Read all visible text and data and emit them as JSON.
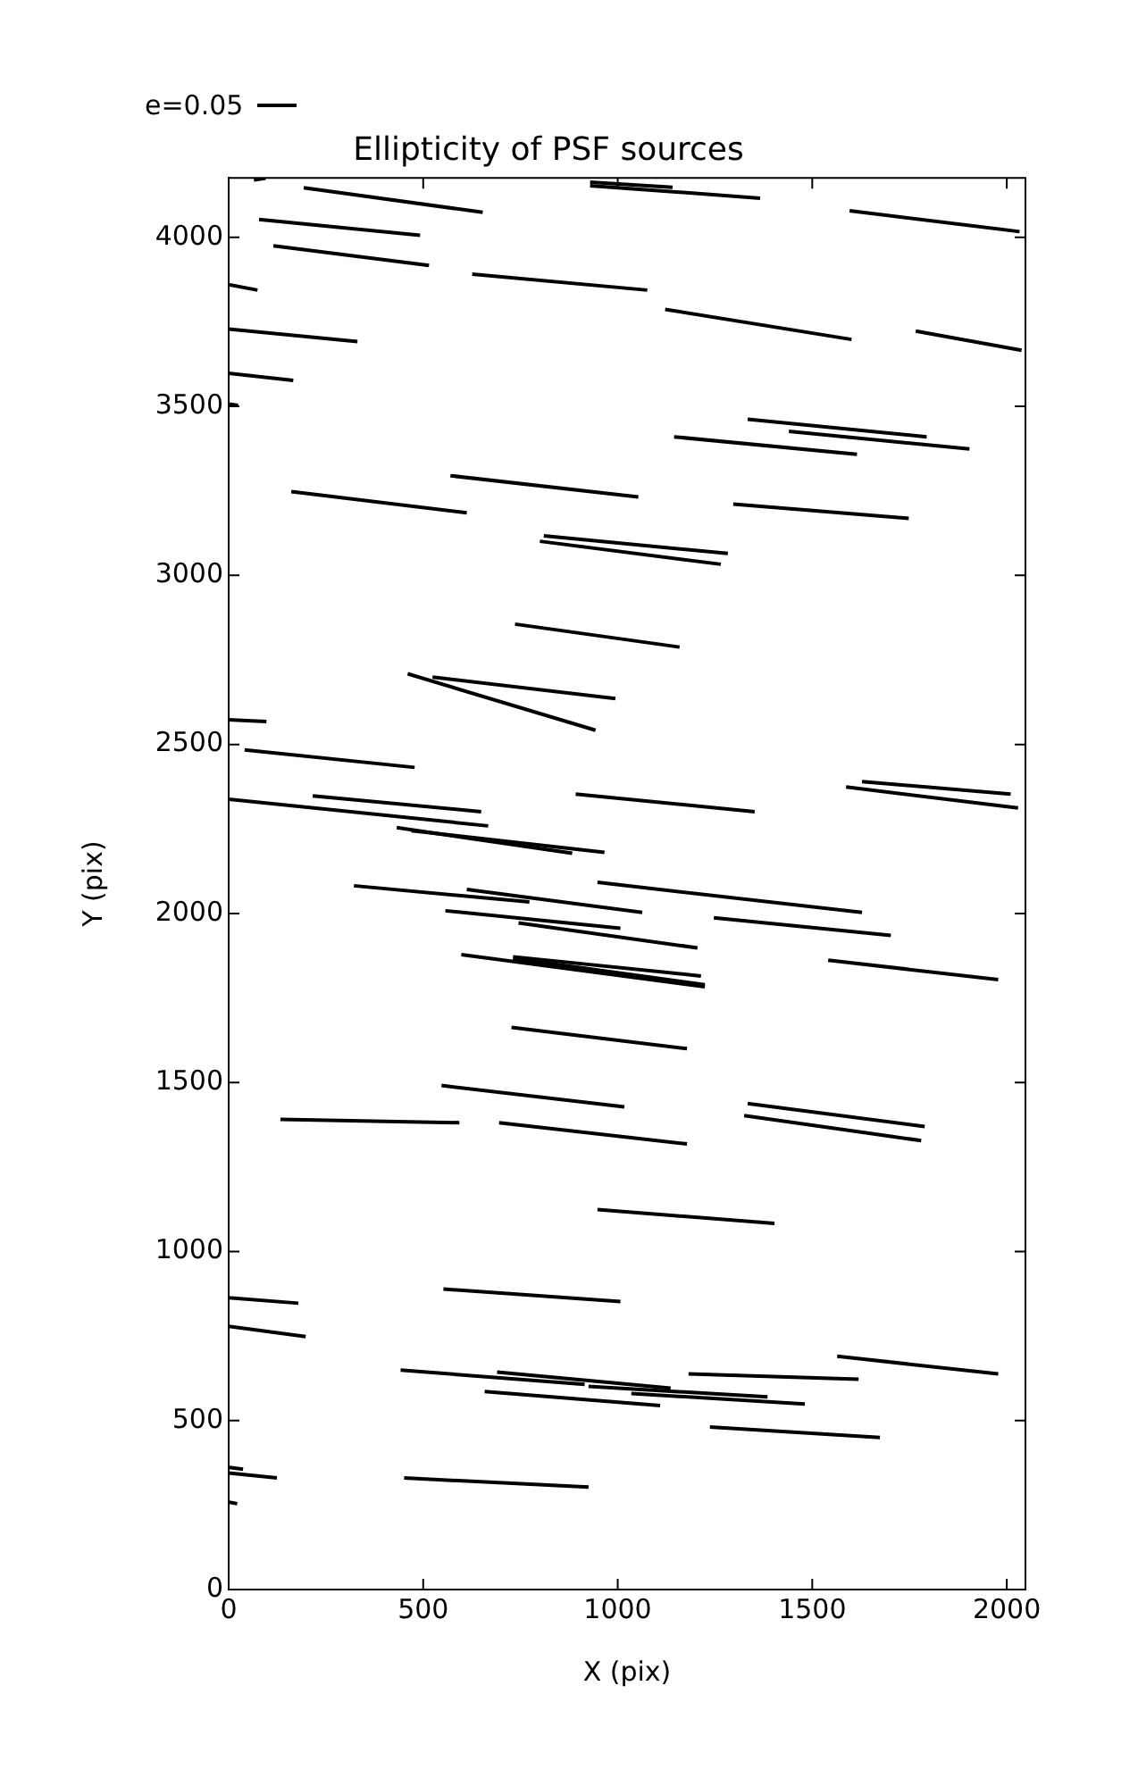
{
  "chart_data": {
    "type": "line",
    "title": "Ellipticity of PSF sources",
    "xlabel": "X (pix)",
    "ylabel": "Y (pix)",
    "xlim": [
      0,
      2048
    ],
    "ylim": [
      0,
      4176
    ],
    "xticks": [
      0,
      500,
      1000,
      1500,
      2000
    ],
    "yticks": [
      0,
      500,
      1000,
      1500,
      2000,
      2500,
      3000,
      3500,
      4000
    ],
    "grid": false,
    "legend": false,
    "marker": "none",
    "line_style": "solid",
    "annotations": [
      "e=0.05"
    ],
    "series": [
      {
        "color": "#000000",
        "x": [
          65,
          95
        ],
        "values": [
          4170,
          4175
        ]
      },
      {
        "color": "#000000",
        "x": [
          193,
          653
        ],
        "values": [
          4147,
          4074
        ]
      },
      {
        "color": "#000000",
        "x": [
          929,
          1141
        ],
        "values": [
          4163,
          4148
        ]
      },
      {
        "color": "#000000",
        "x": [
          929,
          1366
        ],
        "values": [
          4153,
          4116
        ]
      },
      {
        "color": "#000000",
        "x": [
          1596,
          2033
        ],
        "values": [
          4079,
          4017
        ]
      },
      {
        "color": "#000000",
        "x": [
          78,
          492
        ],
        "values": [
          4053,
          4006
        ]
      },
      {
        "color": "#000000",
        "x": [
          115,
          515
        ],
        "values": [
          3975,
          3917
        ]
      },
      {
        "color": "#000000",
        "x": [
          0,
          74
        ],
        "values": [
          3860,
          3844
        ]
      },
      {
        "color": "#000000",
        "x": [
          626,
          1076
        ],
        "values": [
          3891,
          3844
        ]
      },
      {
        "color": "#000000",
        "x": [
          1122,
          1601
        ],
        "values": [
          3787,
          3698
        ]
      },
      {
        "color": "#000000",
        "x": [
          0,
          331
        ],
        "values": [
          3729,
          3692
        ]
      },
      {
        "color": "#000000",
        "x": [
          1766,
          2038
        ],
        "values": [
          3723,
          3666
        ]
      },
      {
        "color": "#000000",
        "x": [
          0,
          166
        ],
        "values": [
          3598,
          3577
        ]
      },
      {
        "color": "#000000",
        "x": [
          2,
          24
        ],
        "values": [
          3507,
          3503
        ]
      },
      {
        "color": "#000000",
        "x": [
          1334,
          1794
        ],
        "values": [
          3462,
          3410
        ]
      },
      {
        "color": "#000000",
        "x": [
          1440,
          1904
        ],
        "values": [
          3426,
          3374
        ]
      },
      {
        "color": "#000000",
        "x": [
          1145,
          1615
        ],
        "values": [
          3410,
          3358
        ]
      },
      {
        "color": "#000000",
        "x": [
          161,
          612
        ],
        "values": [
          3248,
          3185
        ]
      },
      {
        "color": "#000000",
        "x": [
          570,
          1053
        ],
        "values": [
          3295,
          3232
        ]
      },
      {
        "color": "#000000",
        "x": [
          1297,
          1748
        ],
        "values": [
          3211,
          3169
        ]
      },
      {
        "color": "#000000",
        "x": [
          810,
          1283
        ],
        "values": [
          3117,
          3065
        ]
      },
      {
        "color": "#000000",
        "x": [
          800,
          1265
        ],
        "values": [
          3101,
          3033
        ]
      },
      {
        "color": "#000000",
        "x": [
          736,
          1159
        ],
        "values": [
          2856,
          2788
        ]
      },
      {
        "color": "#000000",
        "x": [
          460,
          943
        ],
        "values": [
          2709,
          2542
        ]
      },
      {
        "color": "#000000",
        "x": [
          524,
          994
        ],
        "values": [
          2699,
          2636
        ]
      },
      {
        "color": "#000000",
        "x": [
          0,
          97
        ],
        "values": [
          2573,
          2568
        ]
      },
      {
        "color": "#000000",
        "x": [
          41,
          478
        ],
        "values": [
          2484,
          2432
        ]
      },
      {
        "color": "#000000",
        "x": [
          0,
          667
        ],
        "values": [
          2338,
          2259
        ]
      },
      {
        "color": "#000000",
        "x": [
          216,
          649
        ],
        "values": [
          2348,
          2301
        ]
      },
      {
        "color": "#000000",
        "x": [
          892,
          1352
        ],
        "values": [
          2353,
          2301
        ]
      },
      {
        "color": "#000000",
        "x": [
          432,
          883
        ],
        "values": [
          2254,
          2178
        ]
      },
      {
        "color": "#000000",
        "x": [
          470,
          966
        ],
        "values": [
          2245,
          2181
        ]
      },
      {
        "color": "#000000",
        "x": [
          1628,
          2010
        ],
        "values": [
          2390,
          2353
        ]
      },
      {
        "color": "#000000",
        "x": [
          1587,
          2029
        ],
        "values": [
          2374,
          2312
        ]
      },
      {
        "color": "#000000",
        "x": [
          322,
          773
        ],
        "values": [
          2082,
          2034
        ]
      },
      {
        "color": "#000000",
        "x": [
          612,
          1063
        ],
        "values": [
          2071,
          2003
        ]
      },
      {
        "color": "#000000",
        "x": [
          948,
          1628
        ],
        "values": [
          2092,
          2003
        ]
      },
      {
        "color": "#000000",
        "x": [
          557,
          1007
        ],
        "values": [
          2008,
          1956
        ]
      },
      {
        "color": "#000000",
        "x": [
          745,
          1205
        ],
        "values": [
          1972,
          1898
        ]
      },
      {
        "color": "#000000",
        "x": [
          1247,
          1702
        ],
        "values": [
          1987,
          1935
        ]
      },
      {
        "color": "#000000",
        "x": [
          598,
          1224
        ],
        "values": [
          1878,
          1783
        ]
      },
      {
        "color": "#000000",
        "x": [
          731,
          1214
        ],
        "values": [
          1872,
          1815
        ]
      },
      {
        "color": "#000000",
        "x": [
          731,
          1224
        ],
        "values": [
          1867,
          1789
        ]
      },
      {
        "color": "#000000",
        "x": [
          1541,
          1978
        ],
        "values": [
          1862,
          1804
        ]
      },
      {
        "color": "#000000",
        "x": [
          727,
          1178
        ],
        "values": [
          1663,
          1600
        ]
      },
      {
        "color": "#000000",
        "x": [
          547,
          1017
        ],
        "values": [
          1491,
          1428
        ]
      },
      {
        "color": "#000000",
        "x": [
          133,
          593
        ],
        "values": [
          1391,
          1381
        ]
      },
      {
        "color": "#000000",
        "x": [
          695,
          1178
        ],
        "values": [
          1381,
          1318
        ]
      },
      {
        "color": "#000000",
        "x": [
          1334,
          1789
        ],
        "values": [
          1438,
          1370
        ]
      },
      {
        "color": "#000000",
        "x": [
          1325,
          1780
        ],
        "values": [
          1402,
          1328
        ]
      },
      {
        "color": "#000000",
        "x": [
          948,
          1403
        ],
        "values": [
          1124,
          1083
        ]
      },
      {
        "color": "#000000",
        "x": [
          0,
          179
        ],
        "values": [
          863,
          847
        ]
      },
      {
        "color": "#000000",
        "x": [
          0,
          198
        ],
        "values": [
          779,
          748
        ]
      },
      {
        "color": "#000000",
        "x": [
          552,
          1007
        ],
        "values": [
          889,
          852
        ]
      },
      {
        "color": "#000000",
        "x": [
          442,
          915
        ],
        "values": [
          649,
          607
        ]
      },
      {
        "color": "#000000",
        "x": [
          690,
          1136
        ],
        "values": [
          643,
          596
        ]
      },
      {
        "color": "#000000",
        "x": [
          925,
          1385
        ],
        "values": [
          601,
          570
        ]
      },
      {
        "color": "#000000",
        "x": [
          1035,
          1481
        ],
        "values": [
          580,
          549
        ]
      },
      {
        "color": "#000000",
        "x": [
          658,
          1109
        ],
        "values": [
          586,
          544
        ]
      },
      {
        "color": "#000000",
        "x": [
          1182,
          1619
        ],
        "values": [
          638,
          622
        ]
      },
      {
        "color": "#000000",
        "x": [
          1564,
          1978
        ],
        "values": [
          690,
          638
        ]
      },
      {
        "color": "#000000",
        "x": [
          1237,
          1674
        ],
        "values": [
          481,
          450
        ]
      },
      {
        "color": "#000000",
        "x": [
          0,
          124
        ],
        "values": [
          345,
          330
        ]
      },
      {
        "color": "#000000",
        "x": [
          2,
          37
        ],
        "values": [
          361,
          356
        ]
      },
      {
        "color": "#000000",
        "x": [
          451,
          925
        ],
        "values": [
          330,
          303
        ]
      },
      {
        "color": "#000000",
        "x": [
          2,
          22
        ],
        "values": [
          258,
          254
        ]
      }
    ]
  }
}
